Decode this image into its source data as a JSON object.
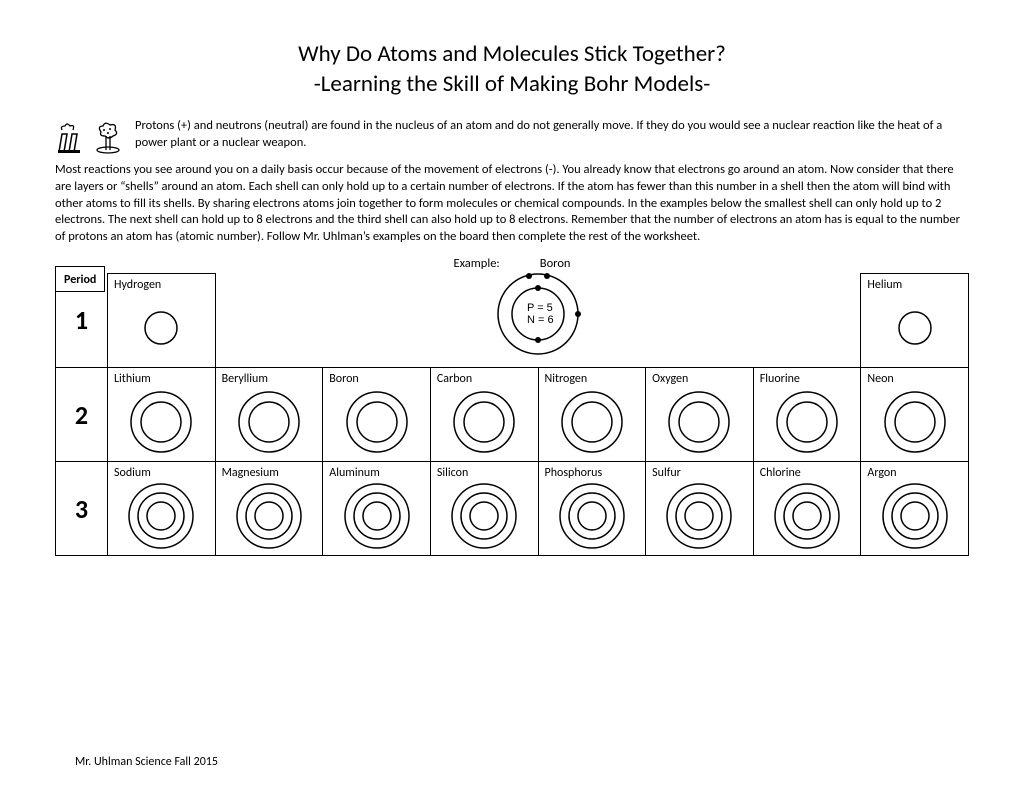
{
  "title": {
    "line1": "Why Do Atoms and Molecules Stick Together?",
    "line2": "-Learning the Skill of Making Bohr Models-"
  },
  "intro": "Protons (+) and neutrons (neutral) are found in the nucleus of an atom and do not generally move. If they do you would see a nuclear reaction like the heat of a power plant or a nuclear weapon.",
  "body": "Most reactions you see around you on a daily basis occur because of the movement of electrons (-). You already know that electrons go around an atom. Now consider that there are layers or “shells” around an atom. Each shell can only hold up to a certain number of electrons. If the atom has fewer than this number in a shell then the atom will bind with other atoms to fill its shells. By sharing electrons atoms join together to form molecules or chemical compounds. In the examples below the smallest shell can only hold up to 2 electrons. The next shell can hold up to 8 electrons and the third shell can also hold up to 8 electrons. Remember that the number of electrons an atom has is equal to the number of protons an atom has (atomic number). Follow Mr. Uhlman’s examples on the board then complete the rest of the worksheet.",
  "example": {
    "label": "Example:",
    "name": "Boron",
    "p": "P = 5",
    "n": "N = 6"
  },
  "period_header": "Period",
  "periods": [
    "1",
    "2",
    "3"
  ],
  "elements": {
    "row1": [
      {
        "name": "Hydrogen",
        "shells": 1
      },
      null,
      null,
      null,
      null,
      null,
      null,
      {
        "name": "Helium",
        "shells": 1
      }
    ],
    "row2": [
      {
        "name": "Lithium",
        "shells": 2
      },
      {
        "name": "Beryllium",
        "shells": 2
      },
      {
        "name": "Boron",
        "shells": 2
      },
      {
        "name": "Carbon",
        "shells": 2
      },
      {
        "name": "Nitrogen",
        "shells": 2
      },
      {
        "name": "Oxygen",
        "shells": 2
      },
      {
        "name": "Fluorine",
        "shells": 2
      },
      {
        "name": "Neon",
        "shells": 2
      }
    ],
    "row3": [
      {
        "name": "Sodium",
        "shells": 3
      },
      {
        "name": "Magnesium",
        "shells": 3
      },
      {
        "name": "Aluminum",
        "shells": 3
      },
      {
        "name": "Silicon",
        "shells": 3
      },
      {
        "name": "Phosphorus",
        "shells": 3
      },
      {
        "name": "Sulfur",
        "shells": 3
      },
      {
        "name": "Chlorine",
        "shells": 3
      },
      {
        "name": "Argon",
        "shells": 3
      }
    ]
  },
  "shell_style": {
    "stroke": "#000000",
    "stroke_width": 1.5,
    "svg_size": 68,
    "radii": {
      "1": [
        16
      ],
      "2": [
        20,
        30
      ],
      "3": [
        14,
        23,
        32
      ]
    }
  },
  "footer": "Mr. Uhlman Science Fall 2015"
}
